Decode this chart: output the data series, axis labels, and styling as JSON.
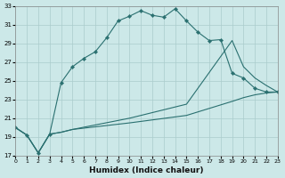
{
  "xlabel": "Humidex (Indice chaleur)",
  "background_color": "#cce8e8",
  "grid_color": "#aacccc",
  "line_color": "#2a7070",
  "xlim": [
    0,
    23
  ],
  "ylim": [
    17,
    33
  ],
  "xticks": [
    0,
    1,
    2,
    3,
    4,
    5,
    6,
    7,
    8,
    9,
    10,
    11,
    12,
    13,
    14,
    15,
    16,
    17,
    18,
    19,
    20,
    21,
    22,
    23
  ],
  "yticks": [
    17,
    19,
    21,
    23,
    25,
    27,
    29,
    31,
    33
  ],
  "curve1_x": [
    0,
    1,
    2,
    3,
    4,
    5,
    6,
    7,
    8,
    9,
    10,
    11,
    12,
    13,
    14,
    15,
    16,
    17,
    18,
    19,
    20,
    21,
    22,
    23
  ],
  "curve1_y": [
    20.0,
    19.2,
    17.3,
    19.3,
    24.8,
    26.5,
    27.4,
    28.1,
    29.6,
    31.4,
    31.9,
    32.5,
    32.0,
    31.8,
    32.7,
    31.4,
    30.2,
    29.3,
    29.4,
    25.8,
    25.3,
    24.2,
    23.8,
    23.8
  ],
  "curve2_x": [
    0,
    1,
    2,
    3,
    4,
    5,
    10,
    15,
    19,
    20,
    21,
    22,
    23
  ],
  "curve2_y": [
    20.0,
    19.2,
    17.3,
    19.3,
    19.5,
    19.8,
    21.0,
    22.5,
    29.3,
    26.5,
    25.3,
    24.5,
    23.8
  ],
  "curve3_x": [
    0,
    1,
    2,
    3,
    4,
    5,
    10,
    15,
    19,
    20,
    21,
    22,
    23
  ],
  "curve3_y": [
    20.0,
    19.2,
    17.3,
    19.3,
    19.5,
    19.8,
    20.5,
    21.3,
    22.8,
    23.2,
    23.5,
    23.7,
    23.8
  ]
}
